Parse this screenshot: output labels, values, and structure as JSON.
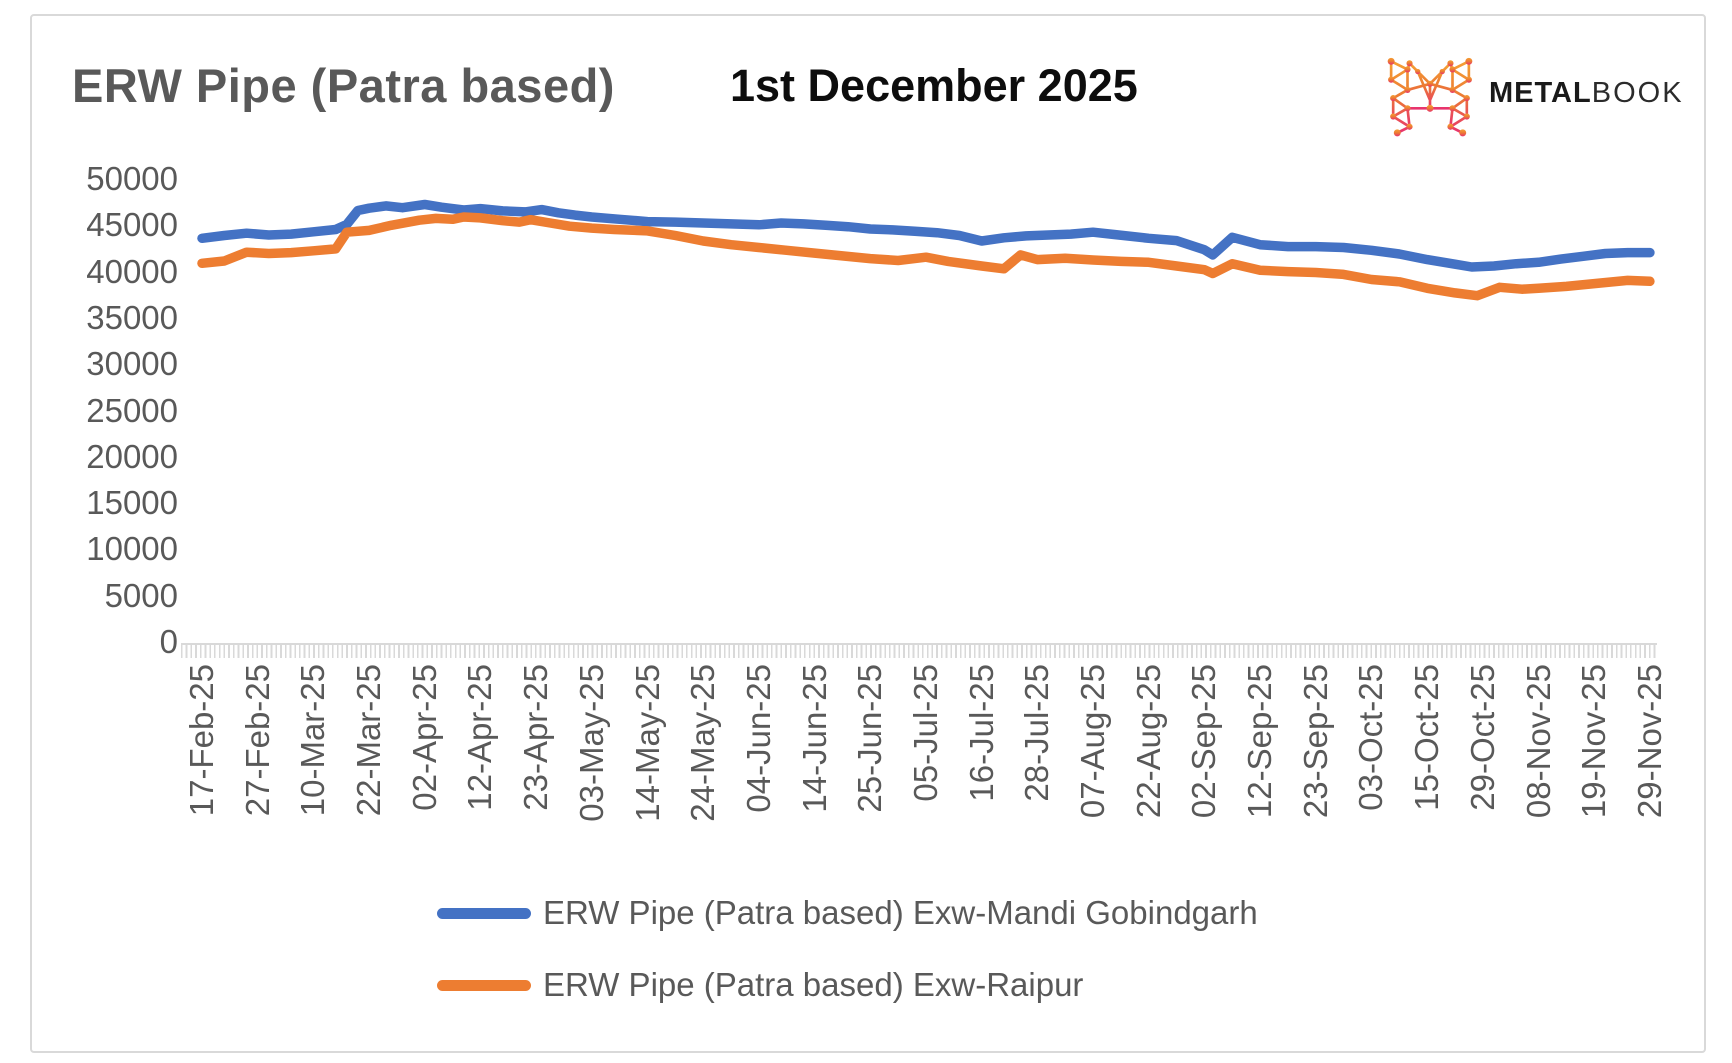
{
  "header": {
    "title": "ERW Pipe (Patra based)",
    "date": "1st December 2025"
  },
  "logo": {
    "brand_bold": "METAL",
    "brand_light": "BOOK",
    "icon": "metalbook-network-m",
    "gradient_top": "#F5A033",
    "gradient_bottom": "#E8336E"
  },
  "chart_data": {
    "type": "line",
    "title": "ERW Pipe (Patra based)",
    "subtitle": "1st December 2025",
    "xlabel": "",
    "ylabel": "",
    "ylim": [
      0,
      50000
    ],
    "y_ticks": [
      0,
      5000,
      10000,
      15000,
      20000,
      25000,
      30000,
      35000,
      40000,
      45000,
      50000
    ],
    "grid": false,
    "legend_position": "bottom",
    "x_unit": "tick_index (0 = 17-Feb-25 ... 26 = 29-Nov-25, near-daily data between ticks)",
    "x_tick_labels": [
      "17-Feb-25",
      "27-Feb-25",
      "10-Mar-25",
      "22-Mar-25",
      "02-Apr-25",
      "12-Apr-25",
      "23-Apr-25",
      "03-May-25",
      "14-May-25",
      "24-May-25",
      "04-Jun-25",
      "14-Jun-25",
      "25-Jun-25",
      "05-Jul-25",
      "16-Jul-25",
      "28-Jul-25",
      "07-Aug-25",
      "22-Aug-25",
      "02-Sep-25",
      "12-Sep-25",
      "23-Sep-25",
      "03-Oct-25",
      "15-Oct-25",
      "29-Oct-25",
      "08-Nov-25",
      "19-Nov-25",
      "29-Nov-25"
    ],
    "series": [
      {
        "name": "ERW Pipe (Patra based) Exw-Mandi Gobindgarh",
        "color": "#4472C4",
        "points": [
          [
            0,
            43600
          ],
          [
            0.4,
            43900
          ],
          [
            0.8,
            44150
          ],
          [
            1.2,
            43950
          ],
          [
            1.6,
            44050
          ],
          [
            2.0,
            44300
          ],
          [
            2.4,
            44550
          ],
          [
            2.6,
            45100
          ],
          [
            2.8,
            46600
          ],
          [
            3.0,
            46850
          ],
          [
            3.3,
            47100
          ],
          [
            3.6,
            46900
          ],
          [
            4.0,
            47250
          ],
          [
            4.3,
            46950
          ],
          [
            4.7,
            46650
          ],
          [
            5.0,
            46800
          ],
          [
            5.4,
            46550
          ],
          [
            5.8,
            46450
          ],
          [
            6.1,
            46700
          ],
          [
            6.4,
            46350
          ],
          [
            6.7,
            46100
          ],
          [
            7.0,
            45900
          ],
          [
            7.5,
            45650
          ],
          [
            8.0,
            45400
          ],
          [
            8.5,
            45350
          ],
          [
            9.0,
            45250
          ],
          [
            9.5,
            45150
          ],
          [
            10.0,
            45050
          ],
          [
            10.4,
            45250
          ],
          [
            10.8,
            45150
          ],
          [
            11.2,
            45000
          ],
          [
            11.6,
            44850
          ],
          [
            12.0,
            44600
          ],
          [
            12.4,
            44500
          ],
          [
            12.8,
            44350
          ],
          [
            13.2,
            44200
          ],
          [
            13.6,
            43900
          ],
          [
            14.0,
            43300
          ],
          [
            14.4,
            43650
          ],
          [
            14.8,
            43850
          ],
          [
            15.2,
            43950
          ],
          [
            15.6,
            44050
          ],
          [
            16.0,
            44250
          ],
          [
            16.4,
            44000
          ],
          [
            17.0,
            43600
          ],
          [
            17.5,
            43350
          ],
          [
            18.0,
            42350
          ],
          [
            18.15,
            41800
          ],
          [
            18.5,
            43700
          ],
          [
            19.0,
            42900
          ],
          [
            19.5,
            42700
          ],
          [
            20.0,
            42700
          ],
          [
            20.5,
            42600
          ],
          [
            21.0,
            42300
          ],
          [
            21.5,
            41900
          ],
          [
            22.0,
            41300
          ],
          [
            22.5,
            40800
          ],
          [
            22.8,
            40500
          ],
          [
            23.2,
            40600
          ],
          [
            23.6,
            40850
          ],
          [
            24.0,
            41000
          ],
          [
            24.4,
            41350
          ],
          [
            24.8,
            41650
          ],
          [
            25.2,
            41950
          ],
          [
            25.6,
            42050
          ],
          [
            26.0,
            42050
          ]
        ]
      },
      {
        "name": "ERW Pipe (Patra based) Exw-Raipur",
        "color": "#ED7D31",
        "points": [
          [
            0,
            40900
          ],
          [
            0.4,
            41150
          ],
          [
            0.8,
            42100
          ],
          [
            1.2,
            41950
          ],
          [
            1.6,
            42050
          ],
          [
            2.0,
            42250
          ],
          [
            2.4,
            42450
          ],
          [
            2.6,
            44250
          ],
          [
            3.0,
            44450
          ],
          [
            3.4,
            45000
          ],
          [
            3.9,
            45550
          ],
          [
            4.2,
            45750
          ],
          [
            4.5,
            45650
          ],
          [
            4.7,
            45900
          ],
          [
            5.0,
            45800
          ],
          [
            5.4,
            45500
          ],
          [
            5.7,
            45350
          ],
          [
            5.9,
            45600
          ],
          [
            6.2,
            45300
          ],
          [
            6.6,
            44900
          ],
          [
            7.0,
            44700
          ],
          [
            7.4,
            44550
          ],
          [
            8.0,
            44400
          ],
          [
            8.5,
            43900
          ],
          [
            9.0,
            43300
          ],
          [
            9.5,
            42900
          ],
          [
            10.0,
            42600
          ],
          [
            10.5,
            42300
          ],
          [
            11.0,
            42000
          ],
          [
            11.5,
            41700
          ],
          [
            12.0,
            41400
          ],
          [
            12.5,
            41200
          ],
          [
            13.0,
            41550
          ],
          [
            13.4,
            41100
          ],
          [
            14.0,
            40600
          ],
          [
            14.4,
            40300
          ],
          [
            14.7,
            41800
          ],
          [
            15.0,
            41300
          ],
          [
            15.5,
            41450
          ],
          [
            16.0,
            41250
          ],
          [
            16.5,
            41100
          ],
          [
            17.0,
            41000
          ],
          [
            17.5,
            40600
          ],
          [
            18.0,
            40200
          ],
          [
            18.15,
            39800
          ],
          [
            18.5,
            40850
          ],
          [
            19.0,
            40150
          ],
          [
            19.5,
            40000
          ],
          [
            20.0,
            39900
          ],
          [
            20.5,
            39700
          ],
          [
            21.0,
            39150
          ],
          [
            21.5,
            38900
          ],
          [
            22.0,
            38200
          ],
          [
            22.5,
            37700
          ],
          [
            22.9,
            37400
          ],
          [
            23.3,
            38300
          ],
          [
            23.7,
            38100
          ],
          [
            24.0,
            38200
          ],
          [
            24.5,
            38400
          ],
          [
            25.0,
            38700
          ],
          [
            25.6,
            39050
          ],
          [
            26.0,
            38950
          ]
        ]
      }
    ]
  }
}
